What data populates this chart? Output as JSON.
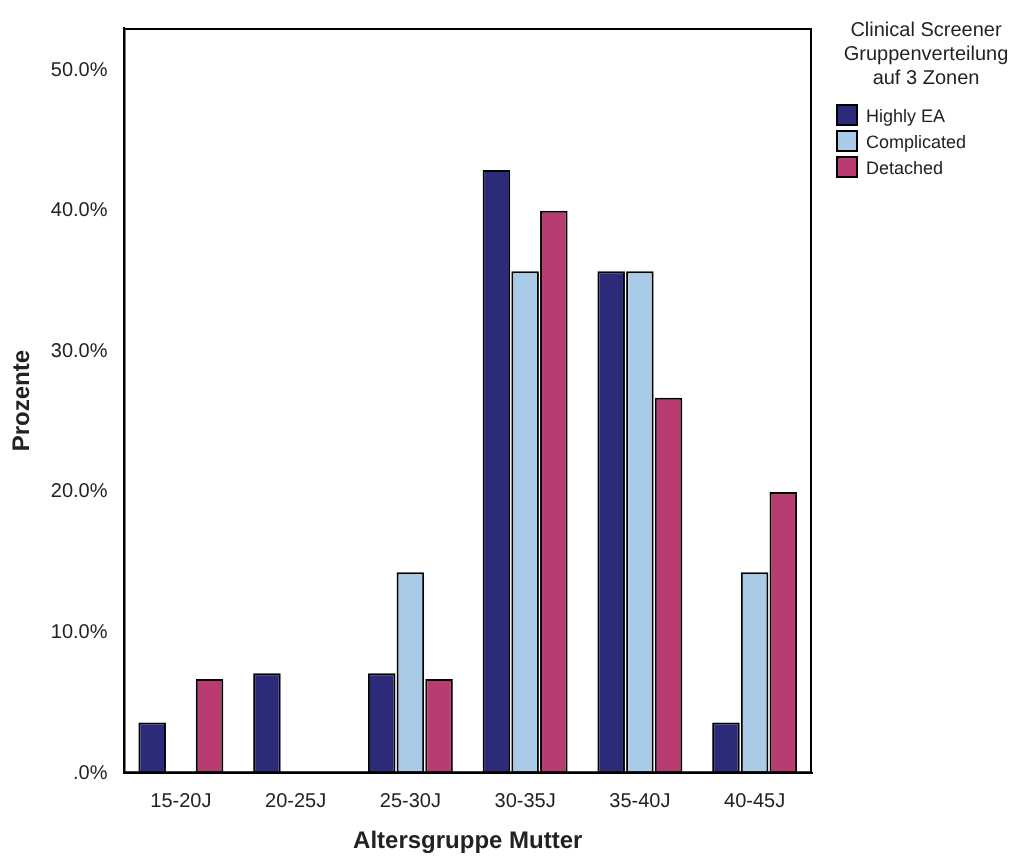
{
  "chart_data": {
    "type": "bar",
    "xlabel": "Altersgruppe Mutter",
    "ylabel": "Prozente",
    "legend_title": "Clinical Screener Gruppenverteilung auf 3 Zonen",
    "legend": "top right",
    "categories": [
      "15-20J",
      "20-25J",
      "25-30J",
      "30-35J",
      "35-40J",
      "40-45J"
    ],
    "series": [
      {
        "name": "Highly EA",
        "color": "#2b2b7a",
        "values": [
          3.6,
          7.1,
          7.1,
          42.9,
          35.7,
          3.6
        ]
      },
      {
        "name": "Complicated",
        "color": "#a9cbe8",
        "values": [
          0,
          0,
          14.3,
          35.7,
          35.7,
          14.3
        ]
      },
      {
        "name": "Detached",
        "color": "#b83b72",
        "values": [
          6.7,
          0,
          6.7,
          40.0,
          26.7,
          20.0
        ]
      }
    ],
    "ylim": [
      0,
      53
    ],
    "yticks": [
      {
        "value": 0,
        "label": ".0%"
      },
      {
        "value": 10,
        "label": "10.0%"
      },
      {
        "value": 20,
        "label": "20.0%"
      },
      {
        "value": 30,
        "label": "30.0%"
      },
      {
        "value": 40,
        "label": "40.0%"
      },
      {
        "value": 50,
        "label": "50.0%"
      }
    ],
    "grid": false
  }
}
